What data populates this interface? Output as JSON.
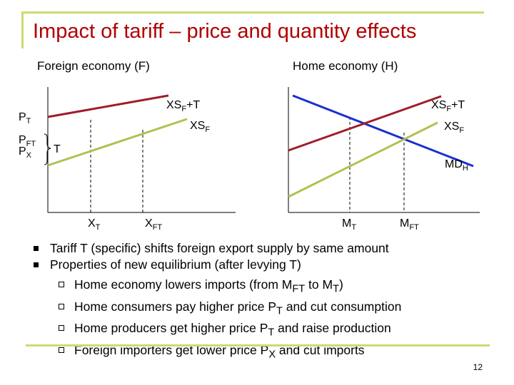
{
  "title": "Impact of tariff – price and quantity effects",
  "panels": {
    "foreign": {
      "label": "Foreign economy (F)",
      "p_t": {
        "main": "P",
        "sub": "T"
      },
      "p_ft": {
        "main": "P",
        "sub": "FT"
      },
      "p_x": {
        "main": "P",
        "sub": "X"
      },
      "tariff_label": "T",
      "supply_shifted": {
        "main": "XS",
        "sub": "F",
        "suffix": "+T"
      },
      "supply": {
        "main": "XS",
        "sub": "F"
      },
      "x_t": {
        "main": "X",
        "sub": "T"
      },
      "x_ft": {
        "main": "X",
        "sub": "FT"
      }
    },
    "home": {
      "label": "Home economy (H)",
      "supply_shifted": {
        "main": "XS",
        "sub": "F",
        "suffix": "+T"
      },
      "supply": {
        "main": "XS",
        "sub": "F"
      },
      "demand": {
        "main": "MD",
        "sub": "H"
      },
      "m_t": {
        "main": "M",
        "sub": "T"
      },
      "m_ft": {
        "main": "M",
        "sub": "FT"
      }
    }
  },
  "colors": {
    "title": "#b00000",
    "shifted_supply": "#a01c2c",
    "supply": "#b4c050",
    "demand": "#1a2fd0",
    "frame": "#c8dd70"
  },
  "bullets": [
    "Tariff T (specific) shifts foreign export supply by same amount",
    "Properties of new equilibrium (after levying T)"
  ],
  "sub_bullets": [
    {
      "parts": [
        "Home economy lowers imports (from M",
        "FT",
        " to M",
        "T",
        ")"
      ]
    },
    {
      "parts": [
        "Home consumers pay higher price P",
        "T",
        " and cut consumption"
      ]
    },
    {
      "parts": [
        "Home producers get higher price P",
        "T",
        " and raise production"
      ]
    },
    {
      "parts": [
        "Foreign importers get lower price P",
        "X",
        " and cut imports"
      ]
    }
  ],
  "page_number": "12"
}
